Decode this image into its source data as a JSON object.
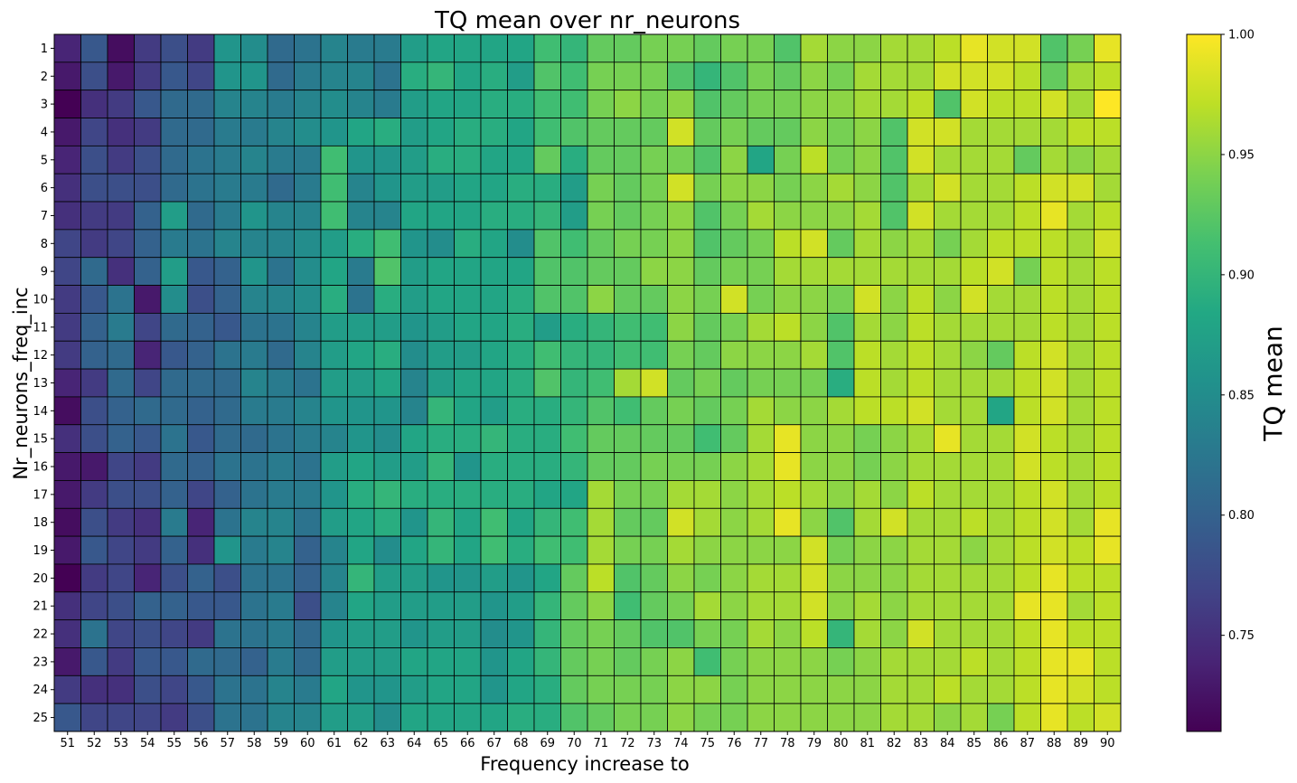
{
  "chart_data": {
    "type": "heatmap",
    "title": "TQ mean over nr_neurons",
    "xlabel": "Frequency increase to",
    "ylabel": "Nr_neurons_freq_inc",
    "colorbar_label": "TQ mean",
    "colormap": "viridis",
    "value_range": [
      0.71,
      1.0
    ],
    "colorbar_ticks": [
      "0.75",
      "0.80",
      "0.85",
      "0.90",
      "0.95",
      "1.00"
    ],
    "x": [
      "51",
      "52",
      "53",
      "54",
      "55",
      "56",
      "57",
      "58",
      "59",
      "60",
      "61",
      "62",
      "63",
      "64",
      "65",
      "66",
      "67",
      "68",
      "69",
      "70",
      "71",
      "72",
      "73",
      "74",
      "75",
      "76",
      "77",
      "78",
      "79",
      "80",
      "81",
      "82",
      "83",
      "84",
      "85",
      "86",
      "87",
      "88",
      "89",
      "90"
    ],
    "y": [
      "1",
      "2",
      "3",
      "4",
      "5",
      "6",
      "7",
      "8",
      "9",
      "10",
      "11",
      "12",
      "13",
      "14",
      "15",
      "16",
      "17",
      "18",
      "19",
      "20",
      "21",
      "22",
      "23",
      "24",
      "25"
    ],
    "values": [
      [
        0.74,
        0.79,
        0.72,
        0.76,
        0.78,
        0.76,
        0.86,
        0.85,
        0.81,
        0.82,
        0.84,
        0.83,
        0.83,
        0.87,
        0.88,
        0.88,
        0.88,
        0.88,
        0.91,
        0.9,
        0.93,
        0.93,
        0.94,
        0.94,
        0.93,
        0.94,
        0.94,
        0.92,
        0.96,
        0.95,
        0.95,
        0.96,
        0.96,
        0.97,
        0.99,
        0.98,
        0.98,
        0.92,
        0.94,
        0.99
      ],
      [
        0.73,
        0.78,
        0.73,
        0.76,
        0.79,
        0.77,
        0.86,
        0.86,
        0.81,
        0.83,
        0.84,
        0.84,
        0.82,
        0.89,
        0.9,
        0.88,
        0.89,
        0.87,
        0.92,
        0.91,
        0.94,
        0.94,
        0.94,
        0.92,
        0.9,
        0.92,
        0.94,
        0.93,
        0.95,
        0.94,
        0.96,
        0.96,
        0.96,
        0.98,
        0.98,
        0.98,
        0.97,
        0.93,
        0.96,
        0.97
      ],
      [
        0.71,
        0.75,
        0.76,
        0.79,
        0.81,
        0.81,
        0.84,
        0.84,
        0.83,
        0.84,
        0.85,
        0.84,
        0.83,
        0.87,
        0.88,
        0.88,
        0.89,
        0.89,
        0.91,
        0.91,
        0.94,
        0.95,
        0.94,
        0.95,
        0.92,
        0.93,
        0.94,
        0.94,
        0.95,
        0.95,
        0.96,
        0.96,
        0.97,
        0.92,
        0.98,
        0.97,
        0.97,
        0.98,
        0.96,
        1.0
      ],
      [
        0.73,
        0.77,
        0.75,
        0.76,
        0.81,
        0.81,
        0.83,
        0.83,
        0.84,
        0.85,
        0.86,
        0.88,
        0.89,
        0.87,
        0.88,
        0.89,
        0.89,
        0.88,
        0.91,
        0.92,
        0.93,
        0.93,
        0.93,
        0.98,
        0.93,
        0.94,
        0.93,
        0.93,
        0.95,
        0.94,
        0.95,
        0.92,
        0.98,
        0.98,
        0.96,
        0.96,
        0.96,
        0.96,
        0.97,
        0.97
      ],
      [
        0.74,
        0.78,
        0.76,
        0.78,
        0.81,
        0.82,
        0.83,
        0.84,
        0.83,
        0.83,
        0.91,
        0.86,
        0.86,
        0.87,
        0.89,
        0.89,
        0.88,
        0.88,
        0.93,
        0.89,
        0.93,
        0.93,
        0.94,
        0.94,
        0.92,
        0.95,
        0.88,
        0.94,
        0.97,
        0.94,
        0.95,
        0.92,
        0.98,
        0.96,
        0.96,
        0.96,
        0.93,
        0.96,
        0.95,
        0.96
      ],
      [
        0.75,
        0.78,
        0.78,
        0.78,
        0.81,
        0.82,
        0.83,
        0.83,
        0.81,
        0.83,
        0.91,
        0.84,
        0.86,
        0.87,
        0.87,
        0.88,
        0.88,
        0.89,
        0.89,
        0.87,
        0.94,
        0.93,
        0.94,
        0.98,
        0.94,
        0.95,
        0.95,
        0.94,
        0.95,
        0.96,
        0.95,
        0.92,
        0.96,
        0.98,
        0.96,
        0.96,
        0.97,
        0.98,
        0.98,
        0.96
      ],
      [
        0.75,
        0.76,
        0.76,
        0.8,
        0.87,
        0.81,
        0.83,
        0.86,
        0.84,
        0.84,
        0.91,
        0.84,
        0.84,
        0.88,
        0.88,
        0.88,
        0.89,
        0.89,
        0.9,
        0.87,
        0.94,
        0.93,
        0.94,
        0.95,
        0.92,
        0.94,
        0.96,
        0.95,
        0.95,
        0.95,
        0.96,
        0.92,
        0.98,
        0.96,
        0.96,
        0.96,
        0.97,
        0.99,
        0.96,
        0.97
      ],
      [
        0.77,
        0.76,
        0.77,
        0.8,
        0.83,
        0.82,
        0.84,
        0.84,
        0.84,
        0.85,
        0.87,
        0.89,
        0.91,
        0.86,
        0.85,
        0.89,
        0.88,
        0.85,
        0.92,
        0.91,
        0.93,
        0.94,
        0.94,
        0.95,
        0.92,
        0.93,
        0.94,
        0.97,
        0.98,
        0.93,
        0.96,
        0.95,
        0.96,
        0.94,
        0.96,
        0.97,
        0.97,
        0.97,
        0.96,
        0.98
      ],
      [
        0.77,
        0.81,
        0.75,
        0.8,
        0.87,
        0.79,
        0.8,
        0.86,
        0.82,
        0.85,
        0.88,
        0.83,
        0.92,
        0.87,
        0.88,
        0.88,
        0.88,
        0.88,
        0.92,
        0.92,
        0.93,
        0.93,
        0.95,
        0.95,
        0.93,
        0.94,
        0.94,
        0.96,
        0.96,
        0.96,
        0.96,
        0.96,
        0.96,
        0.96,
        0.97,
        0.98,
        0.94,
        0.97,
        0.96,
        0.97
      ],
      [
        0.76,
        0.79,
        0.82,
        0.73,
        0.85,
        0.78,
        0.8,
        0.84,
        0.84,
        0.85,
        0.89,
        0.82,
        0.89,
        0.87,
        0.88,
        0.88,
        0.88,
        0.89,
        0.92,
        0.92,
        0.95,
        0.93,
        0.93,
        0.95,
        0.94,
        0.98,
        0.94,
        0.95,
        0.95,
        0.94,
        0.98,
        0.95,
        0.97,
        0.95,
        0.98,
        0.96,
        0.96,
        0.97,
        0.96,
        0.97
      ],
      [
        0.76,
        0.8,
        0.83,
        0.77,
        0.81,
        0.8,
        0.79,
        0.82,
        0.82,
        0.84,
        0.87,
        0.87,
        0.87,
        0.86,
        0.87,
        0.88,
        0.88,
        0.89,
        0.87,
        0.89,
        0.9,
        0.91,
        0.91,
        0.95,
        0.93,
        0.94,
        0.96,
        0.97,
        0.95,
        0.92,
        0.96,
        0.95,
        0.97,
        0.96,
        0.96,
        0.96,
        0.96,
        0.97,
        0.96,
        0.97
      ],
      [
        0.76,
        0.8,
        0.81,
        0.74,
        0.79,
        0.8,
        0.82,
        0.83,
        0.81,
        0.84,
        0.87,
        0.88,
        0.89,
        0.85,
        0.87,
        0.87,
        0.88,
        0.89,
        0.91,
        0.9,
        0.9,
        0.91,
        0.91,
        0.94,
        0.93,
        0.95,
        0.95,
        0.95,
        0.96,
        0.92,
        0.97,
        0.96,
        0.97,
        0.96,
        0.95,
        0.93,
        0.97,
        0.98,
        0.96,
        0.97
      ],
      [
        0.74,
        0.76,
        0.81,
        0.77,
        0.81,
        0.81,
        0.81,
        0.84,
        0.83,
        0.82,
        0.87,
        0.87,
        0.88,
        0.84,
        0.87,
        0.88,
        0.88,
        0.89,
        0.92,
        0.9,
        0.91,
        0.96,
        0.98,
        0.93,
        0.94,
        0.93,
        0.94,
        0.94,
        0.94,
        0.89,
        0.97,
        0.96,
        0.97,
        0.96,
        0.96,
        0.96,
        0.97,
        0.98,
        0.96,
        0.97
      ],
      [
        0.72,
        0.78,
        0.8,
        0.81,
        0.81,
        0.8,
        0.81,
        0.83,
        0.83,
        0.84,
        0.86,
        0.86,
        0.86,
        0.84,
        0.9,
        0.88,
        0.87,
        0.89,
        0.89,
        0.9,
        0.92,
        0.91,
        0.93,
        0.94,
        0.93,
        0.94,
        0.96,
        0.95,
        0.95,
        0.96,
        0.97,
        0.97,
        0.98,
        0.96,
        0.96,
        0.88,
        0.97,
        0.98,
        0.96,
        0.97
      ],
      [
        0.75,
        0.78,
        0.8,
        0.79,
        0.82,
        0.79,
        0.81,
        0.81,
        0.82,
        0.83,
        0.84,
        0.86,
        0.85,
        0.88,
        0.89,
        0.89,
        0.9,
        0.89,
        0.89,
        0.91,
        0.93,
        0.93,
        0.93,
        0.93,
        0.91,
        0.93,
        0.96,
        0.99,
        0.95,
        0.95,
        0.94,
        0.95,
        0.96,
        0.99,
        0.96,
        0.96,
        0.98,
        0.97,
        0.96,
        0.97
      ],
      [
        0.73,
        0.73,
        0.77,
        0.76,
        0.81,
        0.8,
        0.82,
        0.82,
        0.83,
        0.82,
        0.87,
        0.88,
        0.87,
        0.87,
        0.9,
        0.86,
        0.89,
        0.89,
        0.89,
        0.9,
        0.93,
        0.93,
        0.94,
        0.94,
        0.94,
        0.95,
        0.96,
        0.99,
        0.95,
        0.95,
        0.94,
        0.95,
        0.96,
        0.96,
        0.96,
        0.96,
        0.98,
        0.97,
        0.96,
        0.97
      ],
      [
        0.73,
        0.76,
        0.78,
        0.78,
        0.8,
        0.77,
        0.8,
        0.82,
        0.83,
        0.83,
        0.86,
        0.89,
        0.9,
        0.89,
        0.89,
        0.89,
        0.89,
        0.89,
        0.88,
        0.88,
        0.96,
        0.94,
        0.94,
        0.96,
        0.96,
        0.95,
        0.96,
        0.97,
        0.96,
        0.95,
        0.96,
        0.95,
        0.97,
        0.96,
        0.96,
        0.96,
        0.97,
        0.98,
        0.96,
        0.97
      ],
      [
        0.72,
        0.78,
        0.76,
        0.75,
        0.83,
        0.74,
        0.82,
        0.84,
        0.84,
        0.82,
        0.87,
        0.88,
        0.89,
        0.86,
        0.9,
        0.88,
        0.91,
        0.88,
        0.9,
        0.91,
        0.96,
        0.93,
        0.93,
        0.98,
        0.96,
        0.95,
        0.96,
        0.99,
        0.95,
        0.92,
        0.96,
        0.98,
        0.96,
        0.96,
        0.97,
        0.96,
        0.97,
        0.98,
        0.96,
        0.99
      ],
      [
        0.73,
        0.79,
        0.77,
        0.76,
        0.8,
        0.75,
        0.86,
        0.83,
        0.84,
        0.8,
        0.84,
        0.88,
        0.85,
        0.88,
        0.9,
        0.88,
        0.91,
        0.89,
        0.91,
        0.91,
        0.96,
        0.94,
        0.94,
        0.96,
        0.95,
        0.95,
        0.95,
        0.95,
        0.98,
        0.94,
        0.95,
        0.95,
        0.96,
        0.96,
        0.95,
        0.96,
        0.97,
        0.98,
        0.97,
        0.99
      ],
      [
        0.71,
        0.76,
        0.77,
        0.74,
        0.78,
        0.8,
        0.78,
        0.82,
        0.82,
        0.8,
        0.84,
        0.9,
        0.87,
        0.87,
        0.86,
        0.86,
        0.87,
        0.86,
        0.88,
        0.93,
        0.97,
        0.92,
        0.93,
        0.95,
        0.94,
        0.95,
        0.96,
        0.96,
        0.98,
        0.95,
        0.95,
        0.95,
        0.96,
        0.96,
        0.96,
        0.96,
        0.97,
        0.99,
        0.97,
        0.97
      ],
      [
        0.75,
        0.77,
        0.78,
        0.8,
        0.8,
        0.79,
        0.79,
        0.82,
        0.83,
        0.78,
        0.84,
        0.88,
        0.87,
        0.87,
        0.87,
        0.87,
        0.86,
        0.87,
        0.9,
        0.93,
        0.95,
        0.91,
        0.93,
        0.94,
        0.96,
        0.95,
        0.96,
        0.96,
        0.98,
        0.95,
        0.96,
        0.95,
        0.96,
        0.96,
        0.96,
        0.96,
        0.99,
        0.99,
        0.96,
        0.97
      ],
      [
        0.75,
        0.82,
        0.77,
        0.78,
        0.77,
        0.76,
        0.82,
        0.82,
        0.83,
        0.81,
        0.86,
        0.87,
        0.87,
        0.86,
        0.87,
        0.87,
        0.85,
        0.86,
        0.9,
        0.93,
        0.94,
        0.93,
        0.92,
        0.92,
        0.94,
        0.94,
        0.96,
        0.95,
        0.97,
        0.9,
        0.96,
        0.95,
        0.98,
        0.96,
        0.96,
        0.96,
        0.97,
        0.99,
        0.97,
        0.97
      ],
      [
        0.73,
        0.79,
        0.76,
        0.79,
        0.79,
        0.81,
        0.81,
        0.8,
        0.83,
        0.81,
        0.87,
        0.87,
        0.87,
        0.88,
        0.88,
        0.88,
        0.86,
        0.88,
        0.9,
        0.93,
        0.94,
        0.93,
        0.94,
        0.95,
        0.91,
        0.94,
        0.95,
        0.95,
        0.95,
        0.94,
        0.95,
        0.96,
        0.96,
        0.96,
        0.97,
        0.96,
        0.97,
        0.99,
        0.99,
        0.97
      ],
      [
        0.76,
        0.75,
        0.75,
        0.78,
        0.77,
        0.79,
        0.82,
        0.82,
        0.84,
        0.83,
        0.88,
        0.86,
        0.86,
        0.87,
        0.88,
        0.88,
        0.86,
        0.88,
        0.89,
        0.93,
        0.94,
        0.94,
        0.94,
        0.95,
        0.95,
        0.94,
        0.95,
        0.95,
        0.95,
        0.95,
        0.95,
        0.96,
        0.96,
        0.97,
        0.96,
        0.96,
        0.97,
        0.99,
        0.98,
        0.97
      ],
      [
        0.79,
        0.77,
        0.77,
        0.77,
        0.76,
        0.78,
        0.82,
        0.82,
        0.84,
        0.84,
        0.87,
        0.87,
        0.85,
        0.88,
        0.88,
        0.88,
        0.88,
        0.89,
        0.89,
        0.92,
        0.93,
        0.94,
        0.94,
        0.95,
        0.94,
        0.94,
        0.95,
        0.95,
        0.95,
        0.95,
        0.95,
        0.96,
        0.96,
        0.95,
        0.96,
        0.94,
        0.97,
        0.99,
        0.97,
        0.98
      ]
    ]
  }
}
